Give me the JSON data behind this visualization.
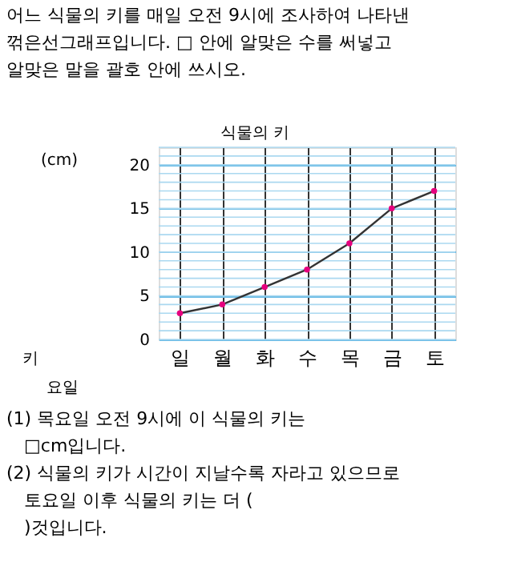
{
  "chart_data": {
    "type": "line",
    "title": "식물의 키",
    "ylabel": "(cm)",
    "xlabel": "요일",
    "categories": [
      "일",
      "월",
      "화",
      "수",
      "목",
      "금",
      "토"
    ],
    "series": [
      {
        "color": "#333333",
        "values": [
          3,
          4,
          6,
          8,
          11,
          15,
          17
        ]
      }
    ],
    "ylim": [
      0,
      22
    ],
    "yticks": [
      0,
      5,
      10,
      15,
      20
    ],
    "grid": true,
    "marker": "circle",
    "line_style": "solid",
    "annotations": [
      "어느 식물의 키를 매일 오전 9시에 조사하여 나타낸 꺾은선그래프입니다. □ 안에 알맞은 수를 써넣고 알맞은 말을 괄호 안에 쓰시오.",
      "키",
      "(1) 목요일 오전 9시에 이 식물의 키는 □cm입니다.",
      "(2) 식물의 키가 시간이 지날수록 자라고 있으므로 토요일 이후 식물의 키는 더 (        )것입니다."
    ]
  }
}
